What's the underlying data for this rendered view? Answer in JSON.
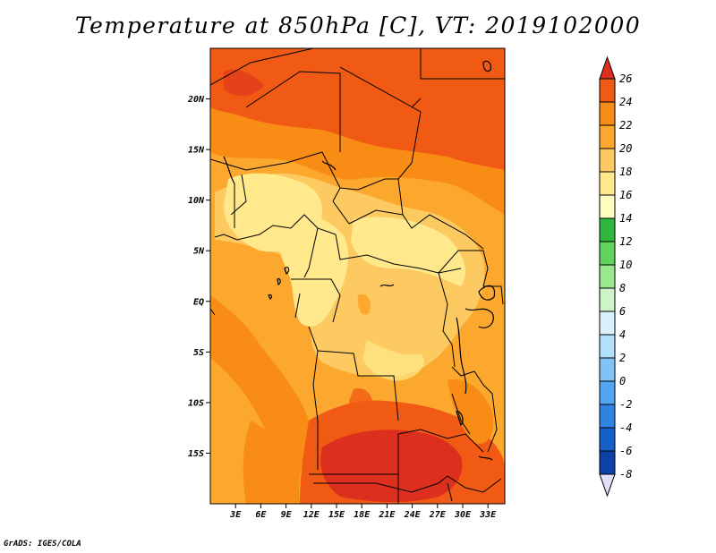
{
  "title": "Temperature at 850hPa [C], VT: 2019102000",
  "credit": "GrADS: IGES/COLA",
  "map": {
    "lon_range": [
      0,
      35
    ],
    "lat_range": [
      -20,
      25
    ],
    "lat_ticks": [
      {
        "value": 20,
        "label": "20N"
      },
      {
        "value": 15,
        "label": "15N"
      },
      {
        "value": 10,
        "label": "10N"
      },
      {
        "value": 5,
        "label": "5N"
      },
      {
        "value": 0,
        "label": "EQ"
      },
      {
        "value": -5,
        "label": "5S"
      },
      {
        "value": -10,
        "label": "10S"
      },
      {
        "value": -15,
        "label": "15S"
      }
    ],
    "lon_ticks": [
      {
        "value": 3,
        "label": "3E"
      },
      {
        "value": 6,
        "label": "6E"
      },
      {
        "value": 9,
        "label": "9E"
      },
      {
        "value": 12,
        "label": "12E"
      },
      {
        "value": 15,
        "label": "15E"
      },
      {
        "value": 18,
        "label": "18E"
      },
      {
        "value": 21,
        "label": "21E"
      },
      {
        "value": 24,
        "label": "24E"
      },
      {
        "value": 27,
        "label": "27E"
      },
      {
        "value": 30,
        "label": "30E"
      },
      {
        "value": 33,
        "label": "33E"
      }
    ]
  },
  "colorbar": {
    "levels": [
      "26",
      "24",
      "22",
      "20",
      "18",
      "16",
      "14",
      "12",
      "10",
      "8",
      "6",
      "4",
      "2",
      "0",
      "-2",
      "-4",
      "-6",
      "-8"
    ],
    "colors": [
      "#dc2f1e",
      "#f05a14",
      "#f88c14",
      "#fca82e",
      "#fdca62",
      "#ffe98c",
      "#fefcbf",
      "#2fb83d",
      "#5fd35a",
      "#9ae78e",
      "#cdf4c6",
      "#d9f1fc",
      "#b1dffc",
      "#7fc3f8",
      "#52a5f1",
      "#2e84e3",
      "#1561cc",
      "#0b41a8",
      "#06207a"
    ],
    "under_color": "#e0e0f8"
  }
}
